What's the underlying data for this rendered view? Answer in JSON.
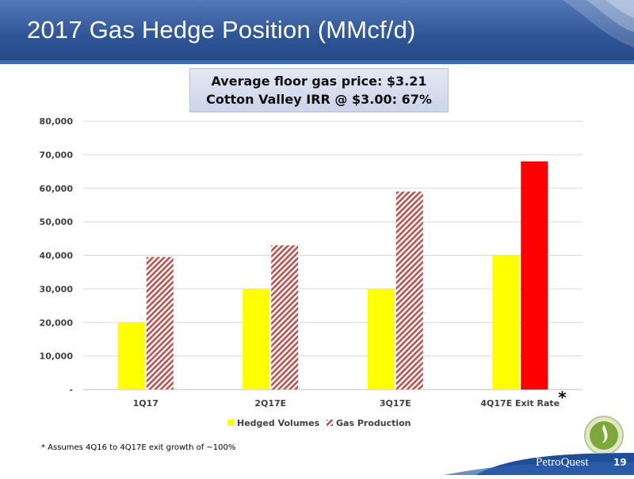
{
  "header": {
    "title": "2017 Gas Hedge Position (MMcf/d)"
  },
  "callout": {
    "line1": "Average floor gas price: $3.21",
    "line2": "Cotton Valley IRR @ $3.00: 67%"
  },
  "colors": {
    "hedged": "#ffff00",
    "production_hatch": "#c0504d",
    "exit_rate": "#ff0000",
    "header_blue": "#2f5597",
    "footer_blue": "#1f4e99"
  },
  "chart_data": {
    "type": "bar",
    "categories": [
      "1Q17",
      "2Q17E",
      "3Q17E",
      "4Q17E Exit Rate"
    ],
    "series": [
      {
        "name": "Hedged Volumes",
        "values": [
          20000,
          30000,
          30000,
          40000
        ]
      },
      {
        "name": "Gas Production",
        "values": [
          39500,
          43000,
          59000,
          68000
        ]
      }
    ],
    "ylim": [
      0,
      80000
    ],
    "yticks": [
      0,
      10000,
      20000,
      30000,
      40000,
      50000,
      60000,
      70000,
      80000
    ],
    "ytick_labels": [
      "-",
      "10,000",
      "20,000",
      "30,000",
      "40,000",
      "50,000",
      "60,000",
      "70,000",
      "80,000"
    ],
    "grid": true,
    "legend_position": "bottom",
    "annotations": [
      {
        "category": "4Q17E Exit Rate",
        "text": "*"
      }
    ]
  },
  "footnote": "* Assumes 4Q16 to 4Q17E exit growth of ~100%",
  "footer": {
    "logo": "PetroQuest",
    "page_number": "19"
  }
}
